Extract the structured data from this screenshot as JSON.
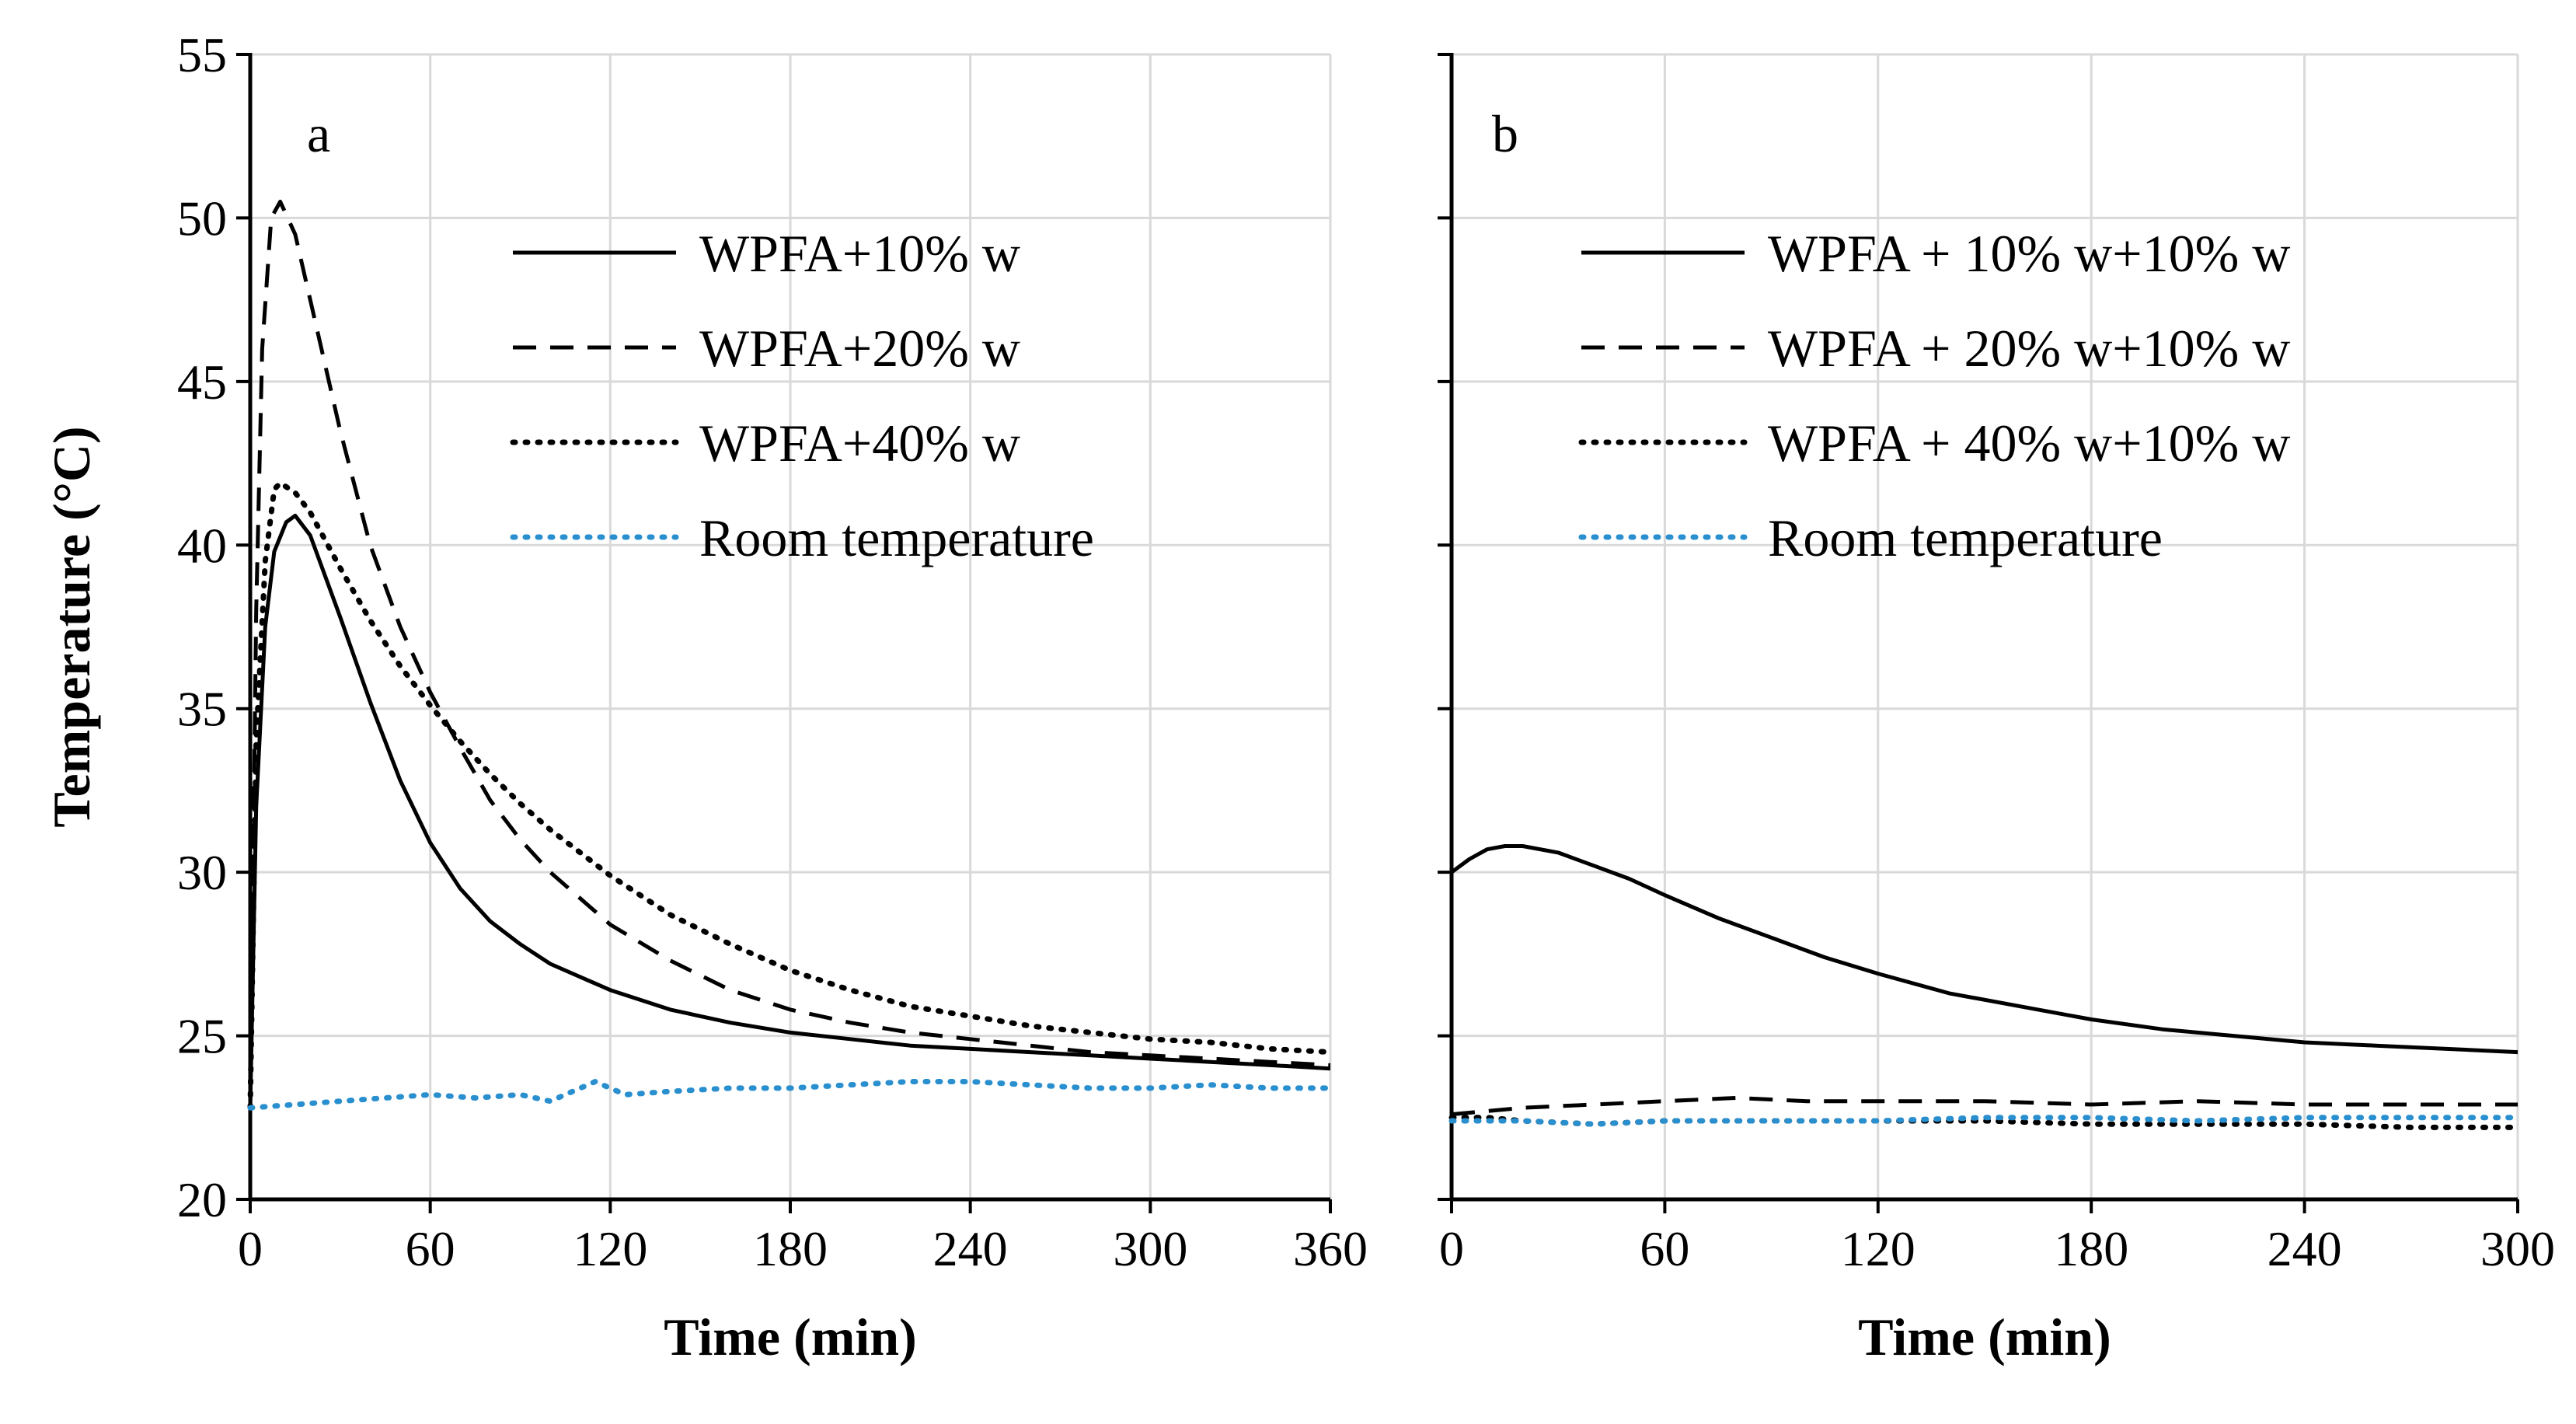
{
  "chart_data": [
    {
      "type": "line",
      "panel_label": "a",
      "xlabel": "Time (min)",
      "ylabel": "Temperature (°C)",
      "xlim": [
        0,
        360
      ],
      "ylim": [
        20,
        55
      ],
      "xticks": [
        0,
        60,
        120,
        180,
        240,
        300,
        360
      ],
      "yticks": [
        20,
        25,
        30,
        35,
        40,
        45,
        50,
        55
      ],
      "grid": true,
      "legend_position": "top-right",
      "series": [
        {
          "name": "WPFA+10% w",
          "style": "solid",
          "color": "#000000",
          "x": [
            0,
            2,
            5,
            8,
            12,
            15,
            20,
            30,
            40,
            50,
            60,
            70,
            80,
            90,
            100,
            120,
            140,
            160,
            180,
            200,
            220,
            240,
            260,
            280,
            300,
            320,
            340,
            360
          ],
          "y": [
            22.8,
            32.0,
            37.5,
            39.8,
            40.7,
            40.9,
            40.3,
            37.8,
            35.2,
            32.8,
            30.9,
            29.5,
            28.5,
            27.8,
            27.2,
            26.4,
            25.8,
            25.4,
            25.1,
            24.9,
            24.7,
            24.6,
            24.5,
            24.4,
            24.3,
            24.2,
            24.1,
            24.0
          ]
        },
        {
          "name": "WPFA+20% w",
          "style": "dashed",
          "color": "#000000",
          "x": [
            0,
            2,
            4,
            7,
            10,
            15,
            20,
            30,
            40,
            50,
            60,
            70,
            80,
            90,
            100,
            120,
            140,
            160,
            180,
            200,
            220,
            240,
            260,
            280,
            300,
            320,
            340,
            360
          ],
          "y": [
            22.8,
            38.0,
            46.0,
            50.0,
            50.5,
            49.5,
            47.5,
            43.5,
            40.0,
            37.5,
            35.5,
            33.8,
            32.2,
            31.0,
            30.0,
            28.4,
            27.3,
            26.4,
            25.8,
            25.4,
            25.1,
            24.9,
            24.7,
            24.5,
            24.4,
            24.3,
            24.2,
            24.1
          ]
        },
        {
          "name": "WPFA+40% w",
          "style": "dotted",
          "color": "#000000",
          "x": [
            0,
            2,
            5,
            8,
            10,
            15,
            20,
            30,
            40,
            50,
            60,
            70,
            80,
            90,
            100,
            120,
            140,
            160,
            180,
            200,
            220,
            240,
            260,
            280,
            300,
            320,
            340,
            360
          ],
          "y": [
            22.8,
            34.0,
            39.5,
            41.7,
            41.9,
            41.6,
            41.0,
            39.3,
            37.7,
            36.3,
            35.1,
            34.0,
            33.0,
            32.1,
            31.3,
            29.9,
            28.7,
            27.8,
            27.0,
            26.4,
            25.9,
            25.6,
            25.3,
            25.1,
            24.9,
            24.8,
            24.6,
            24.5
          ]
        },
        {
          "name": "Room temperature",
          "style": "dotted",
          "color": "#2a8fce",
          "x": [
            0,
            15,
            30,
            45,
            60,
            75,
            90,
            100,
            110,
            115,
            125,
            140,
            160,
            180,
            200,
            220,
            240,
            260,
            280,
            300,
            320,
            340,
            360
          ],
          "y": [
            22.8,
            22.9,
            23.0,
            23.1,
            23.2,
            23.1,
            23.2,
            23.0,
            23.4,
            23.6,
            23.2,
            23.3,
            23.4,
            23.4,
            23.5,
            23.6,
            23.6,
            23.5,
            23.4,
            23.4,
            23.5,
            23.4,
            23.4
          ]
        }
      ]
    },
    {
      "type": "line",
      "panel_label": "b",
      "xlabel": "Time (min)",
      "ylabel": "",
      "xlim": [
        0,
        300
      ],
      "ylim": [
        20,
        55
      ],
      "xticks": [
        0,
        60,
        120,
        180,
        240,
        300
      ],
      "yticks": [
        20,
        25,
        30,
        35,
        40,
        45,
        50,
        55
      ],
      "grid": true,
      "legend_position": "top-right",
      "series": [
        {
          "name": "WPFA + 10% w+10% w",
          "style": "solid",
          "color": "#000000",
          "x": [
            0,
            5,
            10,
            15,
            20,
            30,
            40,
            50,
            60,
            75,
            90,
            105,
            120,
            140,
            160,
            180,
            200,
            220,
            240,
            260,
            280,
            300
          ],
          "y": [
            30.0,
            30.4,
            30.7,
            30.8,
            30.8,
            30.6,
            30.2,
            29.8,
            29.3,
            28.6,
            28.0,
            27.4,
            26.9,
            26.3,
            25.9,
            25.5,
            25.2,
            25.0,
            24.8,
            24.7,
            24.6,
            24.5
          ]
        },
        {
          "name": "WPFA + 20% w+10% w",
          "style": "dashed",
          "color": "#000000",
          "x": [
            0,
            10,
            20,
            40,
            60,
            80,
            100,
            120,
            150,
            180,
            210,
            240,
            270,
            300
          ],
          "y": [
            22.6,
            22.7,
            22.8,
            22.9,
            23.0,
            23.1,
            23.0,
            23.0,
            23.0,
            22.9,
            23.0,
            22.9,
            22.9,
            22.9
          ]
        },
        {
          "name": "WPFA + 40% w+10% w",
          "style": "dotted",
          "color": "#000000",
          "x": [
            0,
            10,
            20,
            40,
            60,
            80,
            100,
            120,
            150,
            180,
            210,
            240,
            270,
            300
          ],
          "y": [
            22.5,
            22.5,
            22.4,
            22.3,
            22.4,
            22.4,
            22.4,
            22.4,
            22.4,
            22.3,
            22.3,
            22.3,
            22.2,
            22.2
          ]
        },
        {
          "name": "Room temperature",
          "style": "dotted",
          "color": "#2a8fce",
          "x": [
            0,
            20,
            40,
            60,
            80,
            100,
            120,
            150,
            180,
            210,
            240,
            270,
            300
          ],
          "y": [
            22.4,
            22.4,
            22.3,
            22.4,
            22.4,
            22.4,
            22.4,
            22.5,
            22.5,
            22.4,
            22.5,
            22.5,
            22.5
          ]
        }
      ]
    }
  ]
}
